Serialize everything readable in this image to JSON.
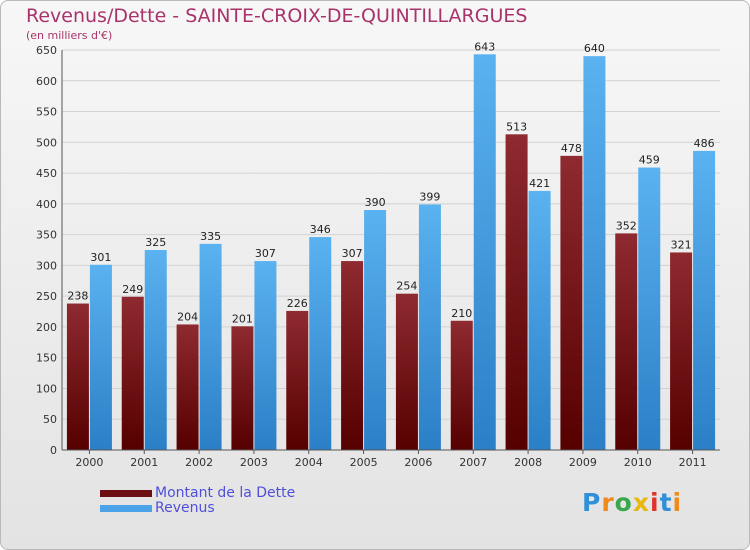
{
  "title": "Revenus/Dette - SAINTE-CROIX-DE-QUINTILLARGUES",
  "subtitle": "(en milliers d'€)",
  "legend": [
    {
      "label": "Montant de la Dette",
      "color": "#6b0f15"
    },
    {
      "label": "Revenus",
      "color": "#4aa3e8"
    }
  ],
  "logo": {
    "text": "Proxiti",
    "letters": [
      {
        "ch": "P",
        "color": "#2f8fd8"
      },
      {
        "ch": "r",
        "color": "#f08a1c"
      },
      {
        "ch": "o",
        "color": "#3aa84a"
      },
      {
        "ch": "x",
        "color": "#e8b80e"
      },
      {
        "ch": "i",
        "color": "#e0342a"
      },
      {
        "ch": "t",
        "color": "#2f8fd8"
      },
      {
        "ch": "i",
        "color": "#f08a1c"
      }
    ]
  },
  "chart_data": {
    "type": "bar",
    "title": "Revenus/Dette - SAINTE-CROIX-DE-QUINTILLARGUES",
    "subtitle": "(en milliers d'€)",
    "categories": [
      "2000",
      "2001",
      "2002",
      "2003",
      "2004",
      "2005",
      "2006",
      "2007",
      "2008",
      "2009",
      "2010",
      "2011"
    ],
    "series": [
      {
        "name": "Montant de la Dette",
        "color": "#6b0f15",
        "values": [
          238,
          249,
          204,
          201,
          226,
          307,
          254,
          210,
          513,
          478,
          352,
          321
        ]
      },
      {
        "name": "Revenus",
        "color": "#4aa3e8",
        "values": [
          301,
          325,
          335,
          307,
          346,
          390,
          399,
          643,
          421,
          640,
          459,
          486
        ]
      }
    ],
    "ylim": [
      0,
      650
    ],
    "yticks": [
      0,
      50,
      100,
      150,
      200,
      250,
      300,
      350,
      400,
      450,
      500,
      550,
      600,
      650
    ],
    "grid": true,
    "legend_position": "bottom-left"
  }
}
